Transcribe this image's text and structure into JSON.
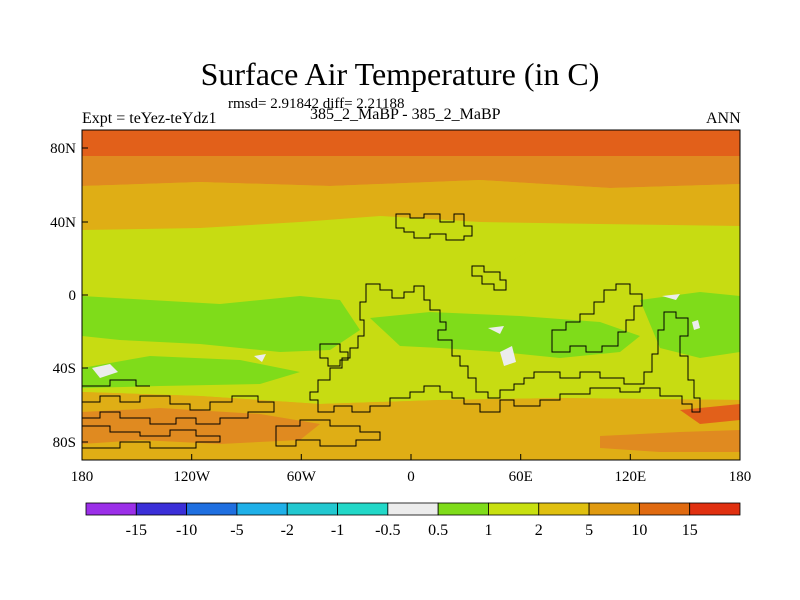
{
  "title": "Surface Air Temperature (in C)",
  "stats": "rmsd= 2.91842 diff= 2.21188",
  "experiment": "Expt = teYez-teYdz1",
  "subtitle": "385_2_MaBP - 385_2_MaBP",
  "season": "ANN",
  "lat_ticks": [
    "80N",
    "40N",
    "0",
    "40S",
    "80S"
  ],
  "lon_ticks": [
    "180",
    "120W",
    "60W",
    "0",
    "60E",
    "120E",
    "180"
  ],
  "colorbar": {
    "colors": [
      "#9b2fe8",
      "#3b2fd8",
      "#1f6fe0",
      "#1fb0e8",
      "#22c8d0",
      "#22d8c8",
      "#ececec",
      "#7fdc1a",
      "#c8e010",
      "#e0c010",
      "#e09a10",
      "#e06a10",
      "#e03010"
    ],
    "labels": [
      "-15",
      "-10",
      "-5",
      "-2",
      "-1",
      "-0.5",
      "0.5",
      "1",
      "2",
      "5",
      "10",
      "15"
    ]
  },
  "map_colors": {
    "dark_orange": "#e2601a",
    "orange": "#e08a20",
    "amber": "#dfae15",
    "yellow_green": "#c7dc12",
    "green": "#7fdc1a",
    "white": "#ececec"
  }
}
